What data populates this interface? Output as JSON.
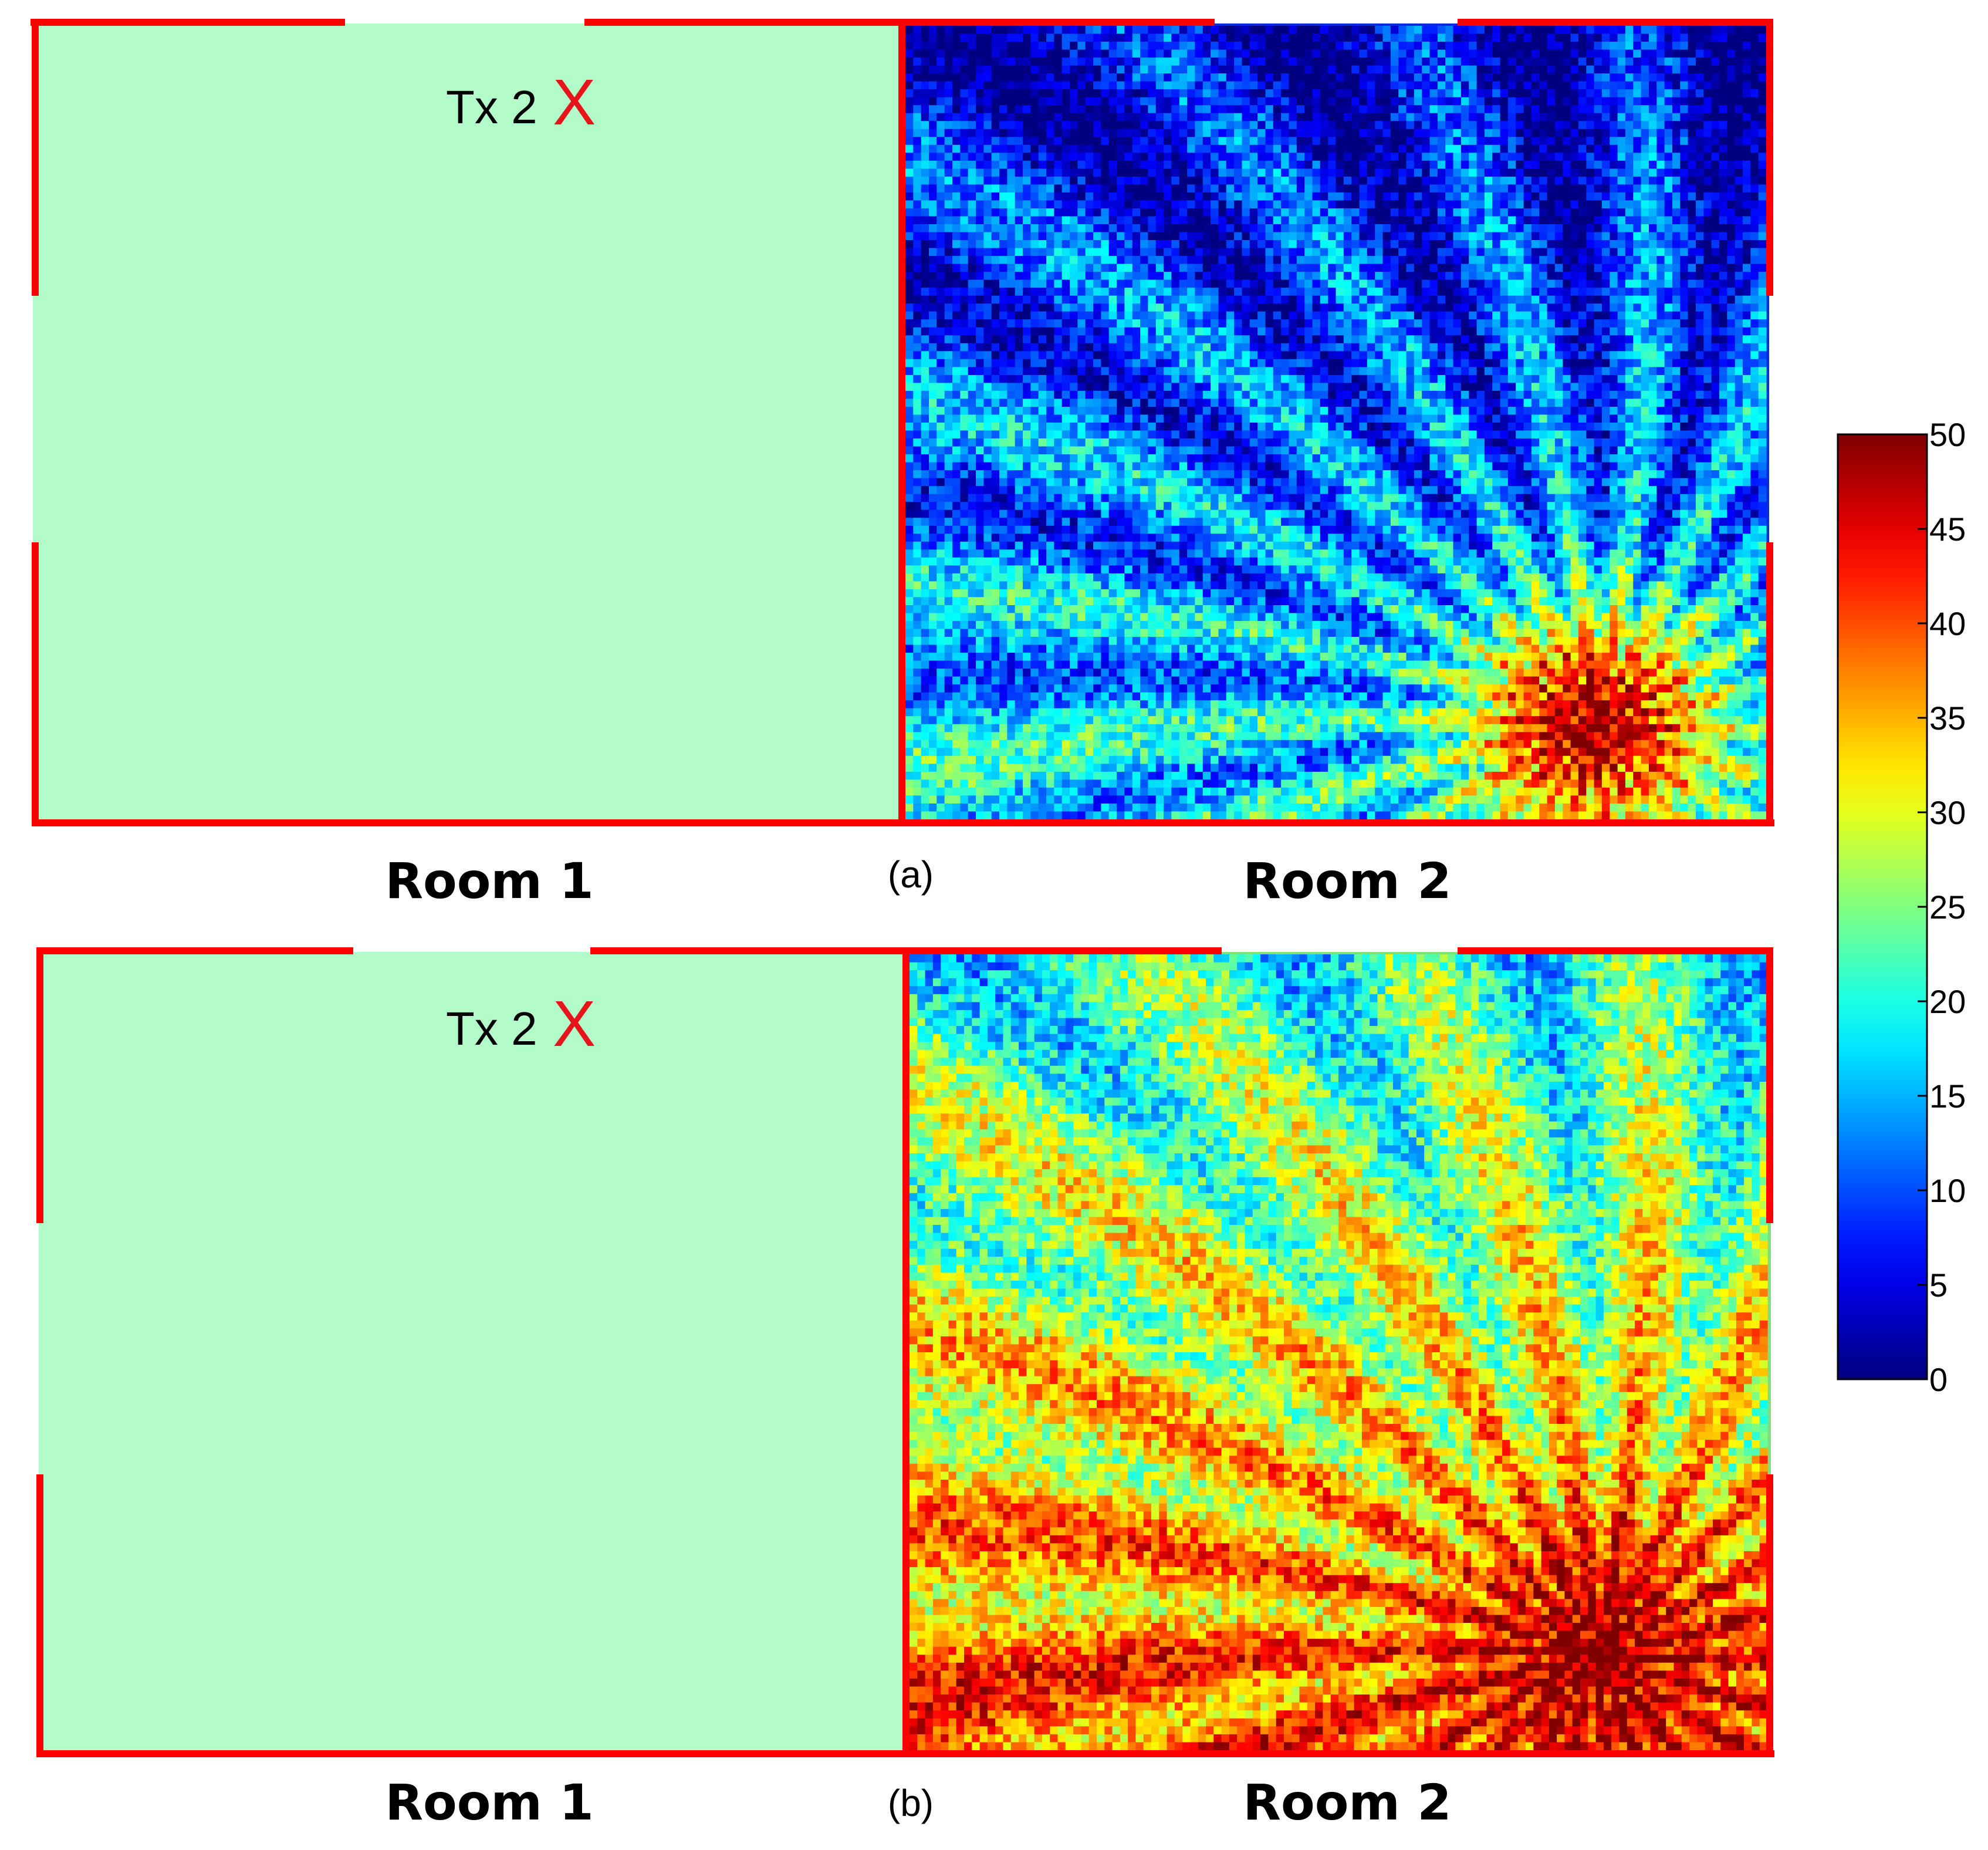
{
  "chart_data": [
    {
      "type": "heatmap",
      "panel_label": "(a)",
      "rooms": [
        "Room 1",
        "Room 2"
      ],
      "transmitter": {
        "label": "Tx 2",
        "marker": "X",
        "room": "Room 1"
      },
      "room1_fill": "#b3fbc8",
      "hotspot_region": "Room 2, lower-right",
      "hotspot_value": 48,
      "background_value_top": 4,
      "background_value_bottom": 18,
      "description_values": "low values (~0–10) across most of Room 2, rising to ~30–48 near the lower-right hotspot, diagonal streak pattern"
    },
    {
      "type": "heatmap",
      "panel_label": "(b)",
      "rooms": [
        "Room 1",
        "Room 2"
      ],
      "transmitter": {
        "label": "Tx 2",
        "marker": "X",
        "room": "Room 1"
      },
      "room1_fill": "#b3fbc8",
      "hotspot_region": "Room 2, lower-right",
      "hotspot_value": 50,
      "background_value_top": 20,
      "background_value_bottom": 40,
      "description_values": "mostly ~15–35 across Room 2, rising to ~45–50 near the lower-right hotspot, diagonal streak pattern"
    }
  ],
  "colorbar": {
    "colormap": "jet",
    "min": 0,
    "max": 50,
    "ticks": [
      "0",
      "5",
      "10",
      "15",
      "20",
      "25",
      "30",
      "35",
      "40",
      "45",
      "50"
    ]
  },
  "colors": {
    "wall": "#ff0000",
    "marker": "#e8141c",
    "room1": "#b3fbc8",
    "text": "#000000"
  }
}
